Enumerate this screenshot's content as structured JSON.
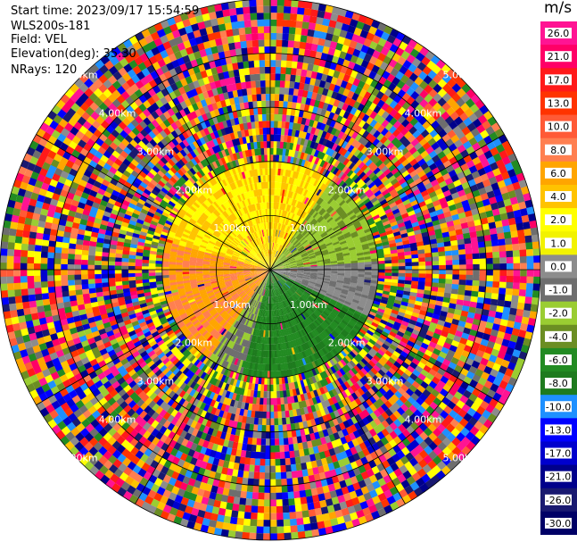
{
  "header": {
    "start_time": "Start time: 2023/09/17 15:54:59",
    "instrument": "WLS200s-181",
    "field": "Field: VEL",
    "elevation": "Elevation(deg): 35.30",
    "nrays": "NRays: 120"
  },
  "colorbar": {
    "unit": "m/s",
    "ticks": [
      "26.0",
      "21.0",
      "17.0",
      "13.0",
      "10.0",
      "8.0",
      "6.0",
      "4.0",
      "2.0",
      "1.0",
      "0.0",
      "-1.0",
      "-2.0",
      "-4.0",
      "-6.0",
      "-8.0",
      "-10.0",
      "-13.0",
      "-17.0",
      "-21.0",
      "-26.0",
      "-30.0"
    ],
    "colors": [
      "#ff1493",
      "#ff0066",
      "#ff1a1a",
      "#ff3300",
      "#ff5a36",
      "#ff7f50",
      "#ffa500",
      "#ffc300",
      "#ffff00",
      "#f2f200",
      "#8c8c8c",
      "#6e6e6e",
      "#9acd32",
      "#6b8e23",
      "#228b22",
      "#1e7b1e",
      "#1e90ff",
      "#0000ff",
      "#0000cd",
      "#00008b",
      "#191970",
      "#000066"
    ]
  },
  "chart_data": {
    "type": "heatmap",
    "projection": "polar PPI",
    "field": "VEL",
    "nrays": 120,
    "vmin": -30.0,
    "vmax": 26.0,
    "range_rings_km": [
      1.0,
      2.0,
      3.0,
      4.0,
      5.0
    ],
    "ring_label_suffix": "km",
    "ring_labels": [
      "1.00km",
      "2.00km",
      "3.00km",
      "4.00km",
      "5.00km"
    ],
    "spokes_deg": [
      0,
      30,
      60,
      90,
      120,
      150,
      180,
      210,
      240,
      270,
      300,
      330
    ],
    "max_range_km": 5.0,
    "valid_data_range_km": 2.0,
    "radial_velocity_pattern": {
      "north_west_sector": "positive (2 to 8 m/s, yellow-orange)",
      "east_sector": "near zero to -2 m/s (gray-olive)",
      "south_sector": "negative (-4 to -6 m/s, green)",
      "beyond_2km": "noise"
    }
  }
}
